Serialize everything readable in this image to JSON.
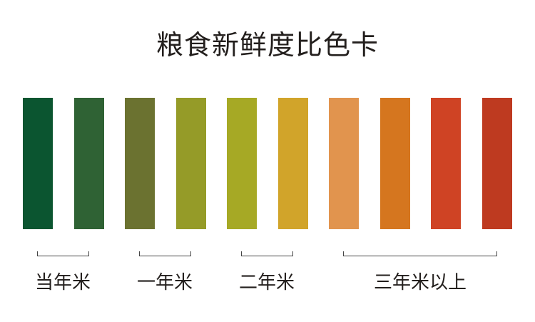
{
  "title": "粮食新鲜度比色卡",
  "swatches": [
    {
      "color": "#0b5530"
    },
    {
      "color": "#2f6234"
    },
    {
      "color": "#6b7230"
    },
    {
      "color": "#959b28"
    },
    {
      "color": "#a6a925"
    },
    {
      "color": "#d1a42a"
    },
    {
      "color": "#e1944e"
    },
    {
      "color": "#d5761f"
    },
    {
      "color": "#cf4324"
    },
    {
      "color": "#be3a20"
    }
  ],
  "groups": [
    {
      "label": "当年米"
    },
    {
      "label": "一年米"
    },
    {
      "label": "二年米"
    },
    {
      "label": "三年米以上"
    }
  ]
}
